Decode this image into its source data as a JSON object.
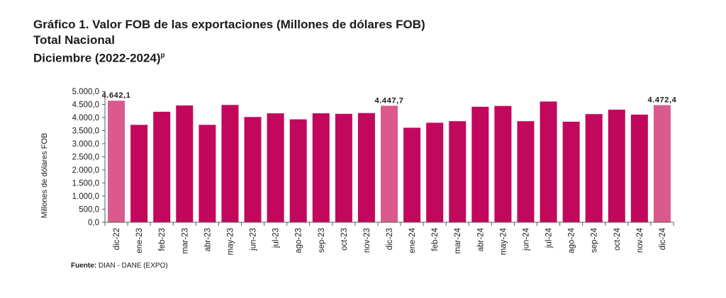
{
  "titles": {
    "line1": "Gráfico 1. Valor FOB de las exportaciones (Millones de dólares FOB)",
    "line2": "Total Nacional",
    "line3": "Diciembre (2022-2024)",
    "line3_sup": "p"
  },
  "source": {
    "label": "Fuente:",
    "text": " DIAN - DANE (EXPO)"
  },
  "colors": {
    "bar": "#C2085C",
    "highlight": "#DB5A8E",
    "axis": "#595959"
  },
  "chart_data": {
    "type": "bar",
    "title": "Valor FOB de las exportaciones (Millones de dólares FOB)",
    "ylabel": "Millones de dólares FOB",
    "xlabel": "",
    "ylim": [
      0,
      5000
    ],
    "yticks": [
      "0,0",
      "500,0",
      "1.000,0",
      "1.500,0",
      "2.000,0",
      "2.500,0",
      "3.000,0",
      "3.500,0",
      "4.000,0",
      "4.500,0",
      "5.000,0"
    ],
    "categories": [
      "dic-22",
      "ene-23",
      "feb-23",
      "mar-23",
      "abr-23",
      "may-23",
      "jun-23",
      "jul-23",
      "ago-23",
      "sep-23",
      "oct-23",
      "nov-23",
      "dic-23",
      "ene-24",
      "feb-24",
      "mar-24",
      "abr-24",
      "may-24",
      "jun-24",
      "jul-24",
      "ago-24",
      "sep-24",
      "oct-24",
      "nov-24",
      "dic-24"
    ],
    "values": [
      4642.1,
      3720,
      4220,
      4460,
      3720,
      4480,
      4020,
      4160,
      3930,
      4160,
      4140,
      4170,
      4447.7,
      3610,
      3800,
      3860,
      4410,
      4440,
      3860,
      4610,
      3840,
      4130,
      4300,
      4110,
      4472.4
    ],
    "highlighted": [
      0,
      12,
      24
    ],
    "data_labels": [
      {
        "index": 0,
        "text": "4.642,1"
      },
      {
        "index": 12,
        "text": "4.447,7"
      },
      {
        "index": 24,
        "text": "4.472,4"
      }
    ],
    "grid": false,
    "legend": "none"
  }
}
